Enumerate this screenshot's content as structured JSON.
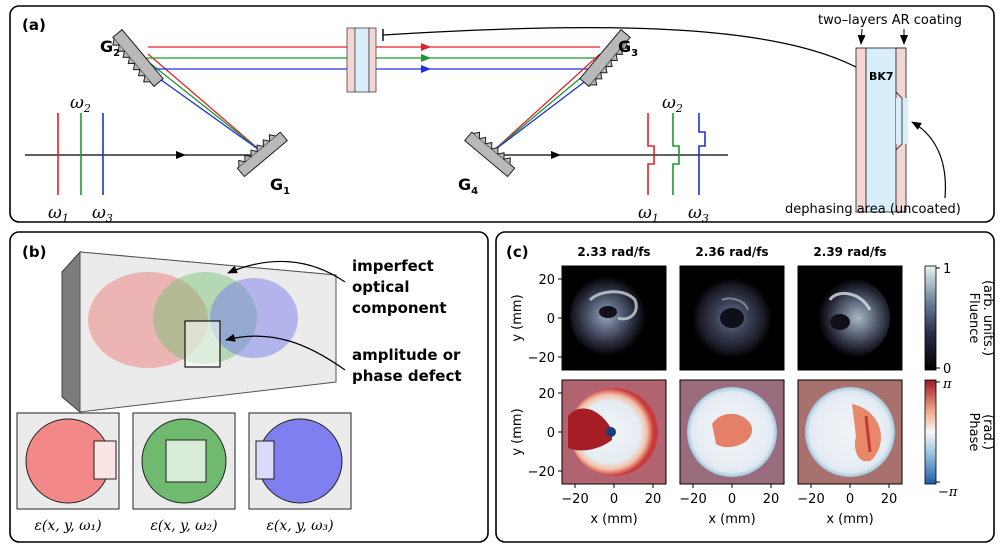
{
  "panel_a": {
    "label": "(a)",
    "gratings": [
      "G",
      "G",
      "G",
      "G"
    ],
    "grating_subs": [
      "2",
      "1",
      "3",
      "4"
    ],
    "omega": "ω",
    "omega_subs": [
      "1",
      "2",
      "3"
    ],
    "coating_label": "two–layers AR coating",
    "glass_label": "BK7",
    "dephasing_label": "dephasing area (uncoated)",
    "colors": {
      "red": "#e8202a",
      "green": "#1a9b2e",
      "blue": "#2030e0"
    }
  },
  "panel_b": {
    "label": "(b)",
    "component_label_1": "imperfect",
    "component_label_2": "optical",
    "component_label_3": "component",
    "defect_label_1": "amplitude or",
    "defect_label_2": "phase defect",
    "field_label_1": "ε(x, y, ω₁)",
    "field_label_2": "ε(x, y, ω₂)",
    "field_label_3": "ε(x, y, ω₃)"
  },
  "panel_c": {
    "label": "(c)",
    "column_titles": [
      "2.33 rad/fs",
      "2.36 rad/fs",
      "2.39 rad/fs"
    ],
    "ylabel": "y (mm)",
    "xlabel": "x (mm)",
    "yticks": [
      "20",
      "0",
      "−20"
    ],
    "xticks": [
      "−20",
      "0",
      "20"
    ],
    "fluence_cbar_label_1": "Fluence",
    "fluence_cbar_label_2": "(arb. units.)",
    "fluence_cbar_max": "1",
    "fluence_cbar_min": "0",
    "phase_cbar_label_1": "Phase",
    "phase_cbar_label_2": "(rad.)",
    "phase_cbar_max": "π",
    "phase_cbar_min": "−π"
  }
}
